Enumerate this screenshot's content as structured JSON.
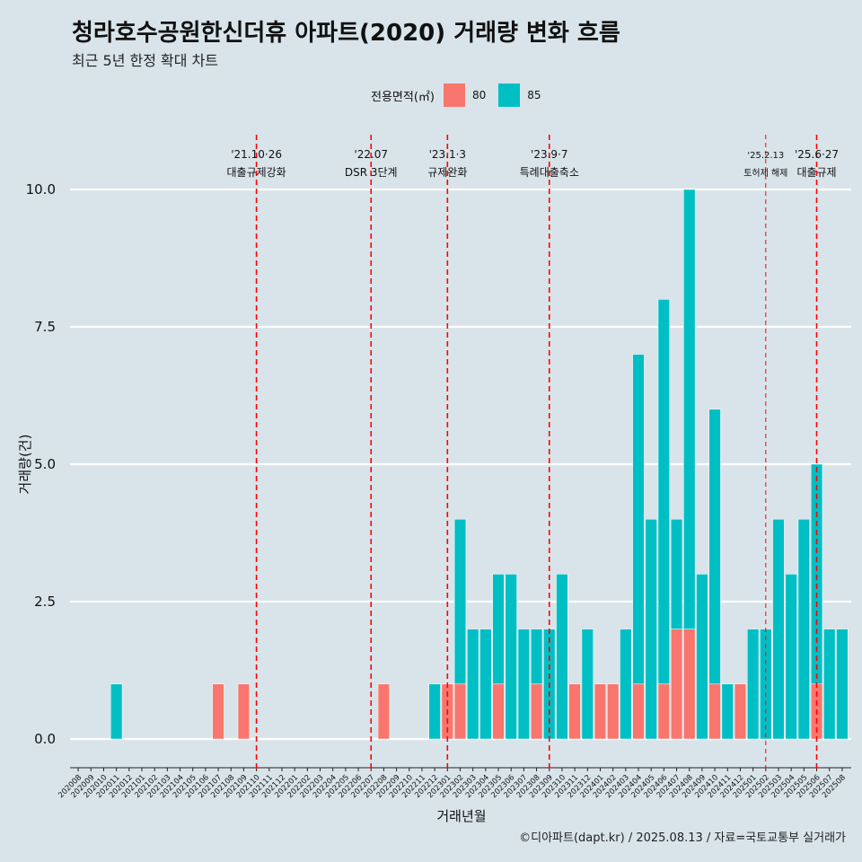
{
  "header": {
    "title": "청라호수공원한신더휴 아파트(2020) 거래량 변화 흐름",
    "subtitle": "최근 5년 한정 확대 차트"
  },
  "legend": {
    "title": "전용면적(㎡)",
    "items": [
      {
        "label": "80",
        "color": "#f8766d"
      },
      {
        "label": "85",
        "color": "#00bfc4"
      }
    ]
  },
  "caption": "©디아파트(dapt.kr) / 2025.08.13 / 자료=국토교통부 실거래가",
  "chart_data": {
    "type": "bar",
    "stacked": true,
    "xlabel": "거래년월",
    "ylabel": "거래량(건)",
    "ylim": [
      0,
      10
    ],
    "yticks": [
      "0.0",
      "2.5",
      "5.0",
      "7.5",
      "10.0"
    ],
    "grid": true,
    "legend_position": "top",
    "categories": [
      "202008",
      "202009",
      "202010",
      "202011",
      "202012",
      "202101",
      "202102",
      "202103",
      "202104",
      "202105",
      "202106",
      "202107",
      "202108",
      "202109",
      "202110",
      "202111",
      "202112",
      "202201",
      "202202",
      "202203",
      "202204",
      "202205",
      "202206",
      "202207",
      "202208",
      "202209",
      "202210",
      "202211",
      "202212",
      "202301",
      "202302",
      "202303",
      "202304",
      "202305",
      "202306",
      "202307",
      "202308",
      "202309",
      "202310",
      "202311",
      "202312",
      "202401",
      "202402",
      "202403",
      "202404",
      "202405",
      "202406",
      "202407",
      "202408",
      "202409",
      "202410",
      "202411",
      "202412",
      "202501",
      "202502",
      "202503",
      "202504",
      "202505",
      "202506",
      "202507",
      "202508"
    ],
    "series": [
      {
        "name": "80",
        "color": "#f8766d",
        "values": [
          0,
          0,
          0,
          0,
          0,
          0,
          0,
          0,
          0,
          0,
          0,
          1,
          0,
          1,
          0,
          0,
          0,
          0,
          0,
          0,
          0,
          0,
          0,
          0,
          1,
          0,
          0,
          0,
          0,
          1,
          1,
          0,
          0,
          1,
          0,
          0,
          1,
          0,
          0,
          1,
          0,
          1,
          1,
          0,
          1,
          0,
          1,
          2,
          2,
          0,
          1,
          0,
          1,
          0,
          0,
          0,
          0,
          0,
          1,
          0,
          0
        ]
      },
      {
        "name": "85",
        "color": "#00bfc4",
        "values": [
          0,
          0,
          0,
          1,
          0,
          0,
          0,
          0,
          0,
          0,
          0,
          0,
          0,
          0,
          0,
          0,
          0,
          0,
          0,
          0,
          0,
          0,
          0,
          0,
          0,
          0,
          0,
          0,
          1,
          0,
          3,
          2,
          2,
          2,
          3,
          2,
          1,
          2,
          3,
          0,
          2,
          0,
          0,
          2,
          6,
          4,
          7,
          2,
          8,
          3,
          5,
          1,
          0,
          2,
          2,
          4,
          3,
          4,
          4,
          2,
          2
        ]
      }
    ],
    "annotations": [
      {
        "x": "202110",
        "line1": "'21.10·26",
        "line2": "대출규제강화",
        "style": "dashed"
      },
      {
        "x": "202207",
        "line1": "'22.07",
        "line2": "DSR 3단계",
        "style": "dashed"
      },
      {
        "x": "202301",
        "line1": "'23.1·3",
        "line2": "규제완화",
        "style": "dashed"
      },
      {
        "x": "202309",
        "line1": "'23.9·7",
        "line2": "특례대출축소",
        "style": "dashed"
      },
      {
        "x": "202502",
        "line1": "'25.2.13",
        "line2": "토허제 해제",
        "style": "thin-dashed"
      },
      {
        "x": "202506",
        "line1": "'25.6·27",
        "line2": "대출규제",
        "style": "dashed"
      }
    ]
  }
}
